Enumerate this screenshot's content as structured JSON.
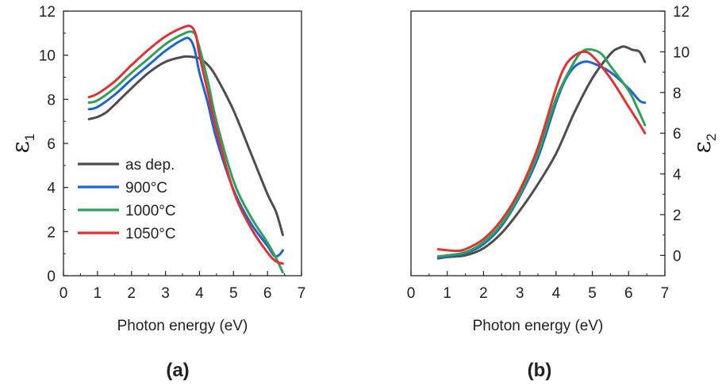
{
  "colors": {
    "as_dep": "#4d4d4d",
    "900C": "#1f64d0",
    "1000C": "#2ca25a",
    "1050C": "#e03232"
  },
  "chart_data": [
    {
      "type": "line",
      "panel_label": "(a)",
      "xlabel": "Photon energy (eV)",
      "ylabel_symbol": "ε",
      "ylabel_subscript": "1",
      "xlim": [
        0,
        7
      ],
      "ylim": [
        0,
        12
      ],
      "xticks": [
        "0",
        "1",
        "2",
        "3",
        "4",
        "5",
        "6",
        "7"
      ],
      "yticks": [
        "0",
        "2",
        "4",
        "6",
        "8",
        "10",
        "12"
      ],
      "yaxis_side": "left",
      "legend_position": "center-left",
      "series": [
        {
          "name": "as dep.",
          "color_key": "as_dep",
          "x": [
            0.75,
            1.0,
            1.25,
            1.5,
            2.0,
            2.5,
            3.0,
            3.5,
            3.75,
            4.0,
            4.25,
            4.5,
            5.0,
            5.5,
            6.0,
            6.25,
            6.45
          ],
          "y": [
            7.1,
            7.2,
            7.4,
            7.75,
            8.5,
            9.2,
            9.7,
            9.92,
            9.93,
            9.85,
            9.55,
            9.0,
            7.5,
            5.6,
            3.7,
            2.9,
            1.85
          ]
        },
        {
          "name": "900°C",
          "color_key": "900C",
          "x": [
            0.75,
            1.0,
            1.5,
            2.0,
            2.5,
            3.0,
            3.5,
            3.7,
            3.85,
            4.0,
            4.25,
            4.5,
            5.0,
            5.5,
            6.0,
            6.2,
            6.35,
            6.45
          ],
          "y": [
            7.55,
            7.65,
            8.2,
            8.9,
            9.55,
            10.2,
            10.7,
            10.75,
            10.3,
            9.2,
            7.8,
            6.2,
            3.9,
            2.4,
            1.35,
            0.9,
            0.95,
            1.15
          ]
        },
        {
          "name": "1000°C",
          "color_key": "1000C",
          "x": [
            0.75,
            1.0,
            1.5,
            2.0,
            2.5,
            3.0,
            3.5,
            3.8,
            3.95,
            4.25,
            4.5,
            5.0,
            5.5,
            6.0,
            6.25,
            6.45
          ],
          "y": [
            7.85,
            7.95,
            8.5,
            9.2,
            9.85,
            10.5,
            10.95,
            11.05,
            10.6,
            8.8,
            7.0,
            4.3,
            2.7,
            1.5,
            0.8,
            0.15
          ]
        },
        {
          "name": "1050°C",
          "color_key": "1050C",
          "x": [
            0.75,
            1.0,
            1.5,
            2.0,
            2.5,
            3.0,
            3.5,
            3.75,
            3.9,
            4.0,
            4.25,
            4.5,
            5.0,
            5.5,
            6.0,
            6.25,
            6.45
          ],
          "y": [
            8.1,
            8.25,
            8.8,
            9.55,
            10.25,
            10.85,
            11.25,
            11.3,
            10.9,
            10.0,
            8.3,
            6.6,
            3.85,
            2.2,
            1.05,
            0.65,
            0.55
          ]
        }
      ]
    },
    {
      "type": "line",
      "panel_label": "(b)",
      "xlabel": "Photon energy (eV)",
      "ylabel_symbol": "ε",
      "ylabel_subscript": "2",
      "xlim": [
        0,
        7
      ],
      "ylim": [
        -1,
        12
      ],
      "xticks": [
        "0",
        "1",
        "2",
        "3",
        "4",
        "5",
        "6",
        "7"
      ],
      "yticks": [
        "0",
        "2",
        "4",
        "6",
        "8",
        "10",
        "12"
      ],
      "yaxis_side": "right",
      "series": [
        {
          "name": "as dep.",
          "color_key": "as_dep",
          "x": [
            0.75,
            1.0,
            1.5,
            2.0,
            2.5,
            3.0,
            3.5,
            4.0,
            4.5,
            5.0,
            5.5,
            5.75,
            5.9,
            6.1,
            6.3,
            6.45
          ],
          "y": [
            -0.15,
            -0.08,
            0.0,
            0.35,
            1.1,
            2.2,
            3.5,
            5.0,
            7.0,
            8.7,
            9.9,
            10.2,
            10.25,
            10.1,
            10.0,
            9.5
          ]
        },
        {
          "name": "900°C",
          "color_key": "900C",
          "x": [
            0.75,
            1.0,
            1.5,
            2.0,
            2.5,
            3.0,
            3.5,
            4.0,
            4.25,
            4.5,
            4.75,
            5.0,
            5.5,
            6.0,
            6.3,
            6.45
          ],
          "y": [
            -0.1,
            -0.05,
            0.1,
            0.55,
            1.45,
            2.9,
            4.8,
            7.5,
            8.6,
            9.25,
            9.5,
            9.45,
            9.0,
            8.2,
            7.6,
            7.5
          ]
        },
        {
          "name": "1000°C",
          "color_key": "1000C",
          "x": [
            0.75,
            1.0,
            1.5,
            2.0,
            2.5,
            3.0,
            3.5,
            4.0,
            4.5,
            4.75,
            5.0,
            5.25,
            5.5,
            6.0,
            6.25,
            6.45
          ],
          "y": [
            -0.05,
            0.0,
            0.15,
            0.65,
            1.55,
            3.0,
            5.0,
            7.7,
            9.5,
            10.05,
            10.1,
            9.9,
            9.3,
            8.1,
            7.2,
            6.4
          ]
        },
        {
          "name": "1050°C",
          "color_key": "1050C",
          "x": [
            0.75,
            1.0,
            1.25,
            1.5,
            2.0,
            2.5,
            3.0,
            3.5,
            4.0,
            4.25,
            4.5,
            4.75,
            5.0,
            5.5,
            6.0,
            6.25,
            6.45
          ],
          "y": [
            0.3,
            0.25,
            0.22,
            0.3,
            0.8,
            1.75,
            3.2,
            5.3,
            8.2,
            9.3,
            9.8,
            10.0,
            9.8,
            8.7,
            7.3,
            6.6,
            6.0
          ]
        }
      ]
    }
  ]
}
